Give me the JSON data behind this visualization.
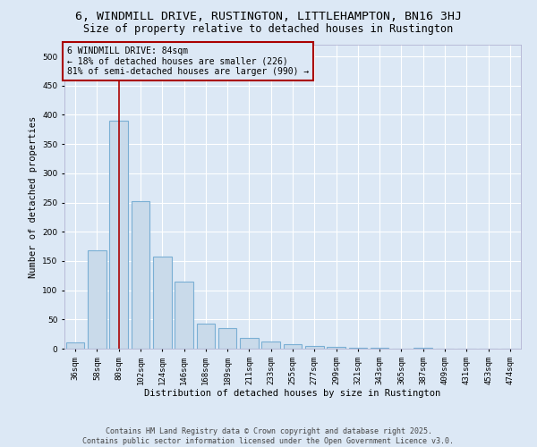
{
  "title_line1": "6, WINDMILL DRIVE, RUSTINGTON, LITTLEHAMPTON, BN16 3HJ",
  "title_line2": "Size of property relative to detached houses in Rustington",
  "xlabel": "Distribution of detached houses by size in Rustington",
  "ylabel": "Number of detached properties",
  "categories": [
    "36sqm",
    "58sqm",
    "80sqm",
    "102sqm",
    "124sqm",
    "146sqm",
    "168sqm",
    "189sqm",
    "211sqm",
    "233sqm",
    "255sqm",
    "277sqm",
    "299sqm",
    "321sqm",
    "343sqm",
    "365sqm",
    "387sqm",
    "409sqm",
    "431sqm",
    "453sqm",
    "474sqm"
  ],
  "values": [
    10,
    168,
    390,
    253,
    158,
    115,
    43,
    35,
    18,
    12,
    8,
    5,
    3,
    2,
    1,
    0,
    2,
    0,
    0,
    0,
    0
  ],
  "bar_color": "#c9daea",
  "bar_edge_color": "#7aafd4",
  "highlight_bar_index": 2,
  "highlight_color": "#aa0000",
  "annotation_line1": "6 WINDMILL DRIVE: 84sqm",
  "annotation_line2": "← 18% of detached houses are smaller (226)",
  "annotation_line3": "81% of semi-detached houses are larger (990) →",
  "ylim": [
    0,
    520
  ],
  "yticks": [
    0,
    50,
    100,
    150,
    200,
    250,
    300,
    350,
    400,
    450,
    500
  ],
  "background_color": "#dce8f5",
  "plot_bg_color": "#dce8f5",
  "grid_color": "#ffffff",
  "footer_line1": "Contains HM Land Registry data © Crown copyright and database right 2025.",
  "footer_line2": "Contains public sector information licensed under the Open Government Licence v3.0.",
  "title_fontsize": 9.5,
  "subtitle_fontsize": 8.5,
  "axis_label_fontsize": 7.5,
  "tick_fontsize": 6.5,
  "annotation_fontsize": 7,
  "footer_fontsize": 6
}
